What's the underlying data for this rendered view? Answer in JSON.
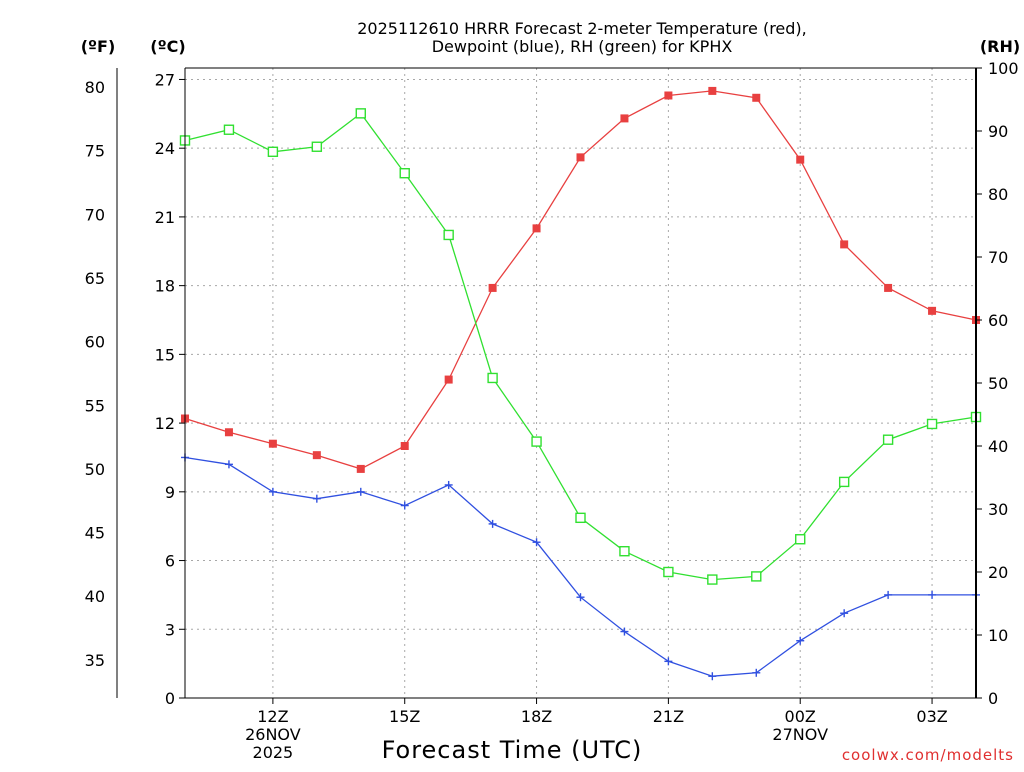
{
  "chart_data": {
    "type": "line",
    "title_lines": [
      "2025112610 HRRR Forecast 2-meter Temperature (red),",
      "Dewpoint (blue), RH (green) for KPHX"
    ],
    "xlabel": "Forecast Time (UTC)",
    "credit": "coolwx.com/modelts",
    "x_hours": [
      10,
      11,
      12,
      13,
      14,
      15,
      16,
      17,
      18,
      19,
      20,
      21,
      22,
      23,
      24,
      25,
      26,
      27,
      28
    ],
    "xlim": [
      10,
      28
    ],
    "x_ticks": [
      {
        "x": 12,
        "lines": [
          "12Z",
          "26NOV",
          "2025"
        ]
      },
      {
        "x": 15,
        "lines": [
          "15Z"
        ]
      },
      {
        "x": 18,
        "lines": [
          "18Z"
        ]
      },
      {
        "x": 21,
        "lines": [
          "21Z"
        ]
      },
      {
        "x": 24,
        "lines": [
          "00Z",
          "27NOV"
        ]
      },
      {
        "x": 27,
        "lines": [
          "03Z"
        ]
      }
    ],
    "axes": {
      "fahrenheit": {
        "unit": "(ºF)",
        "ticks": [
          "35",
          "40",
          "45",
          "50",
          "55",
          "60",
          "65",
          "70",
          "75",
          "80"
        ]
      },
      "celsius": {
        "unit": "(ºC)",
        "ylim": [
          0,
          27.5
        ],
        "ticks": [
          "0",
          "3",
          "6",
          "9",
          "12",
          "15",
          "18",
          "21",
          "24",
          "27"
        ]
      },
      "rh": {
        "unit": "(RH)",
        "ylim": [
          0,
          100
        ],
        "ticks": [
          "0",
          "10",
          "20",
          "30",
          "40",
          "50",
          "60",
          "70",
          "80",
          "90",
          "100"
        ]
      }
    },
    "series": [
      {
        "name": "Temperature",
        "color": "#e84040",
        "marker": "filled-square",
        "axis": "celsius",
        "values": [
          12.2,
          11.6,
          11.1,
          10.6,
          10.0,
          11.0,
          13.9,
          17.9,
          20.5,
          23.6,
          25.3,
          26.3,
          26.5,
          26.2,
          23.5,
          19.8,
          17.9,
          16.9,
          16.5
        ]
      },
      {
        "name": "Dewpoint",
        "color": "#3050e0",
        "marker": "plus",
        "axis": "celsius",
        "values": [
          10.5,
          10.2,
          9.0,
          8.7,
          9.0,
          8.4,
          9.3,
          7.6,
          6.8,
          4.4,
          2.9,
          1.6,
          0.95,
          1.1,
          2.5,
          3.7,
          4.5,
          4.5,
          4.5
        ]
      },
      {
        "name": "RH",
        "color": "#30e030",
        "marker": "open-square",
        "axis": "rh",
        "values": [
          88.5,
          90.2,
          86.7,
          87.5,
          92.8,
          83.3,
          73.5,
          50.8,
          40.7,
          28.6,
          23.3,
          20.0,
          18.8,
          19.3,
          25.2,
          34.3,
          41.0,
          43.5,
          44.6
        ]
      }
    ]
  }
}
